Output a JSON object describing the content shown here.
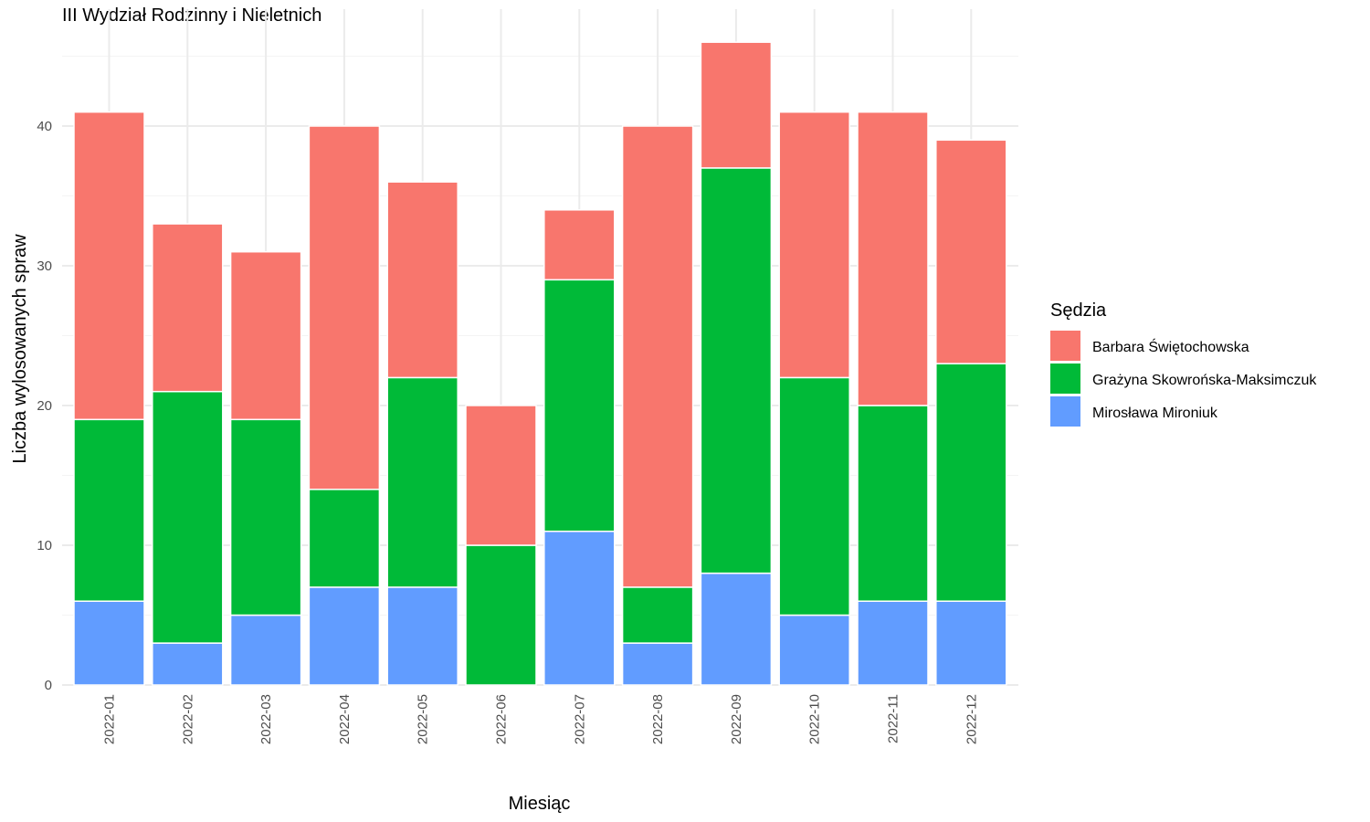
{
  "chart_data": {
    "type": "bar",
    "stacked": true,
    "title": "III Wydział Rodzinny i Nieletnich",
    "xlabel": "Miesiąc",
    "ylabel": "Liczba wylosowanych spraw",
    "ylim": [
      0,
      48
    ],
    "yticks": [
      0,
      10,
      20,
      30,
      40
    ],
    "grid": true,
    "legend_position": "right",
    "legend_title": "Sędzia",
    "categories": [
      "2022-01",
      "2022-02",
      "2022-03",
      "2022-04",
      "2022-05",
      "2022-06",
      "2022-07",
      "2022-08",
      "2022-09",
      "2022-10",
      "2022-11",
      "2022-12"
    ],
    "series": [
      {
        "name": "Mirosława Mironiuk",
        "color": "#619CFF",
        "values": [
          6,
          3,
          5,
          7,
          7,
          0,
          11,
          3,
          8,
          5,
          6,
          6
        ]
      },
      {
        "name": "Grażyna Skowrońska-Maksimczuk",
        "color": "#00BA38",
        "values": [
          13,
          18,
          14,
          7,
          15,
          10,
          18,
          4,
          29,
          17,
          14,
          17
        ]
      },
      {
        "name": "Barbara Świętochowska",
        "color": "#F8766D",
        "values": [
          22,
          12,
          12,
          26,
          14,
          10,
          5,
          33,
          9,
          19,
          21,
          16
        ]
      }
    ],
    "legend_order": [
      "Barbara Świętochowska",
      "Grażyna Skowrońska-Maksimczuk",
      "Mirosława Mironiuk"
    ]
  }
}
